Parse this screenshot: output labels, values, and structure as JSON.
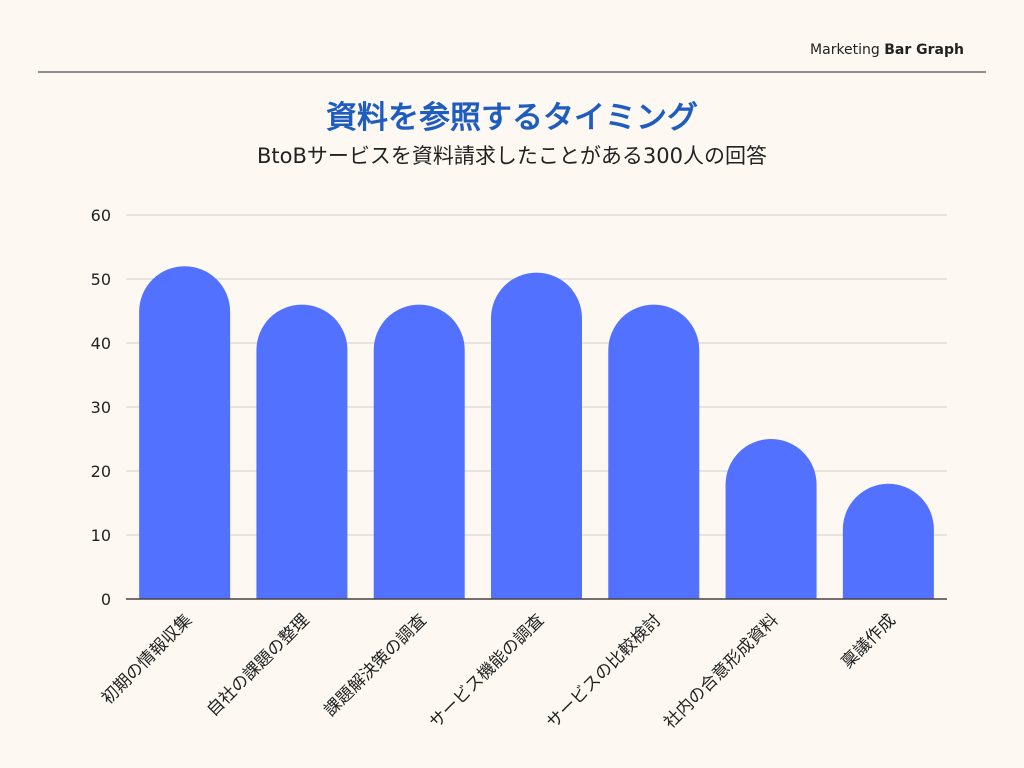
{
  "header": {
    "label_light": "Marketing ",
    "label_bold": "Bar Graph"
  },
  "colors": {
    "bar": "#5271ff",
    "title": "#1f5cc0",
    "grid": "#cfcfcf",
    "background": "#fdf9f2"
  },
  "chart_data": {
    "type": "bar",
    "title": "資料を参照するタイミング",
    "subtitle": "BtoBサービスを資料請求したことがある300人の回答",
    "xlabel": "",
    "ylabel": "",
    "categories": [
      "初期の情報収集",
      "自社の課題の整理",
      "課題解決策の調査",
      "サービス機能の調査",
      "サービスの比較検討",
      "社内の合意形成資料",
      "稟議作成"
    ],
    "values": [
      52,
      46,
      46,
      51,
      46,
      25,
      18
    ],
    "ylim": [
      0,
      60
    ],
    "yticks": [
      0,
      10,
      20,
      30,
      40,
      50,
      60
    ],
    "grid": true,
    "legend": "none"
  }
}
